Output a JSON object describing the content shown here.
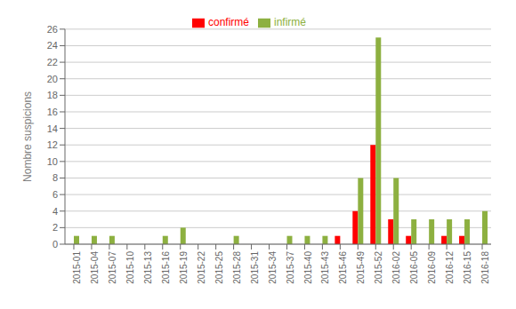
{
  "chart_data": {
    "type": "bar",
    "categories": [
      "2015-01",
      "2015-04",
      "2015-07",
      "2015-10",
      "2015-13",
      "2015-16",
      "2015-19",
      "2015-22",
      "2015-25",
      "2015-28",
      "2015-31",
      "2015-34",
      "2015-37",
      "2015-40",
      "2015-43",
      "2015-46",
      "2015-49",
      "2015-52",
      "2016-02",
      "2016-05",
      "2016-09",
      "2016-12",
      "2016-15",
      "2016-18"
    ],
    "series": [
      {
        "name": "confirmé",
        "color": "#ff0000",
        "values": [
          0,
          0,
          0,
          0,
          0,
          0,
          0,
          0,
          0,
          0,
          0,
          0,
          0,
          0,
          0,
          1,
          4,
          12,
          3,
          1,
          0,
          1,
          1,
          0
        ]
      },
      {
        "name": "infirmé",
        "color": "#8db040",
        "values": [
          1,
          1,
          1,
          0,
          0,
          1,
          2,
          0,
          0,
          1,
          0,
          0,
          1,
          1,
          1,
          0,
          8,
          25,
          8,
          3,
          3,
          3,
          3,
          4
        ]
      }
    ],
    "ylabel": "Nombre suspicions",
    "ylim": [
      0,
      26
    ],
    "yticks": [
      0,
      2,
      4,
      6,
      8,
      10,
      12,
      14,
      16,
      18,
      20,
      22,
      24,
      26
    ],
    "grid": true,
    "legend": "top"
  }
}
